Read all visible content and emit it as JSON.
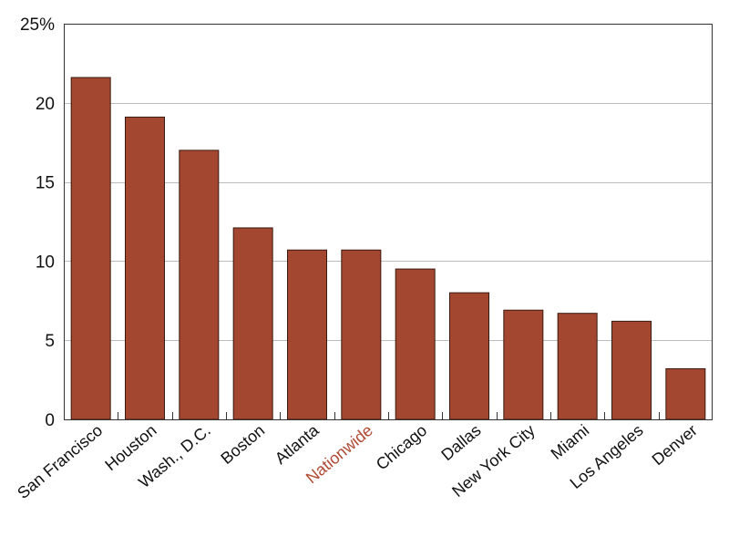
{
  "chart_data": {
    "type": "bar",
    "categories": [
      "San Francisco",
      "Houston",
      "Wash., D.C.",
      "Boston",
      "Atlanta",
      "Nationwide",
      "Chicago",
      "Dallas",
      "New York City",
      "Miami",
      "Los Angeles",
      "Denver"
    ],
    "values": [
      21.6,
      19.1,
      17.0,
      12.1,
      10.7,
      10.7,
      9.5,
      8.0,
      6.9,
      6.7,
      6.2,
      3.2
    ],
    "highlight_category": "Nationwide",
    "ylim": [
      0,
      25
    ],
    "yticks": [
      0,
      5,
      10,
      15,
      20,
      25
    ],
    "ytick_labels": [
      "0",
      "5",
      "10",
      "15",
      "20",
      "25%"
    ],
    "title": "",
    "xlabel": "",
    "ylabel": "",
    "grid": "horizontal",
    "legend": "none"
  },
  "colors": {
    "bar": "#a34730",
    "bar_stroke": "#3a1a10",
    "highlight_label": "#b04a33",
    "grid": "#bdbdbd",
    "axis": "#333333"
  }
}
